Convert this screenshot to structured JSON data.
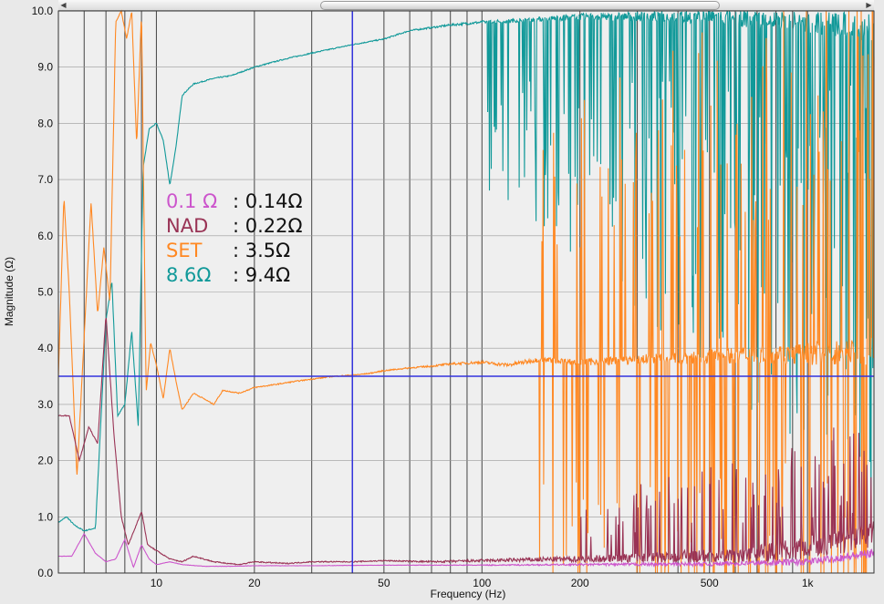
{
  "chart_data": {
    "type": "line",
    "title": "",
    "xlabel": "Frequency (Hz)",
    "ylabel": "Magnitude (Ω)",
    "x_scale": "log",
    "xlim": [
      5,
      1600
    ],
    "ylim": [
      0,
      10
    ],
    "grid": true,
    "x_ticks": [
      10,
      20,
      50,
      100,
      200,
      500,
      1000
    ],
    "x_tick_labels": [
      "10",
      "20",
      "50",
      "100",
      "200",
      "500",
      "1k"
    ],
    "y_ticks": [
      0,
      1,
      2,
      3,
      4,
      5,
      6,
      7,
      8,
      9,
      10
    ],
    "y_tick_labels": [
      "0.0",
      "1.0",
      "2.0",
      "3.0",
      "4.0",
      "5.0",
      "6.0",
      "7.0",
      "8.0",
      "9.0",
      "10.0"
    ],
    "cursor": {
      "x": 40,
      "y": 3.5
    },
    "legend": [
      {
        "name": "0.1 Ω",
        "value": ": 0.14Ω",
        "color": "#cc55cc"
      },
      {
        "name": "NAD",
        "value": ": 0.22Ω",
        "color": "#993355"
      },
      {
        "name": "SET",
        "value": ": 3.5Ω",
        "color": "#ff8822"
      },
      {
        "name": "8.6Ω",
        "value": ": 9.4Ω",
        "color": "#119999"
      }
    ],
    "series": [
      {
        "name": "8.6Ω",
        "color": "#119999",
        "x": [
          5,
          5.3,
          5.6,
          6,
          6.5,
          7,
          7.3,
          7.6,
          8,
          8.4,
          8.8,
          9.1,
          9.5,
          10,
          10.5,
          11,
          11.5,
          12,
          13,
          15,
          17,
          20,
          25,
          30,
          40,
          50,
          60,
          80,
          100,
          150,
          200,
          300,
          500,
          700,
          1000,
          1600
        ],
        "values": [
          0.9,
          1.0,
          0.85,
          0.75,
          0.8,
          4.5,
          5.2,
          2.8,
          3.0,
          4.3,
          2.6,
          7.2,
          7.9,
          8.0,
          7.7,
          6.9,
          7.6,
          8.5,
          8.7,
          8.8,
          8.85,
          9.0,
          9.15,
          9.25,
          9.4,
          9.5,
          9.65,
          9.75,
          9.8,
          9.85,
          9.9,
          9.9,
          9.9,
          9.85,
          9.8,
          9.7
        ]
      },
      {
        "name": "SET",
        "color": "#ff8822",
        "x": [
          5,
          5.2,
          5.4,
          5.7,
          6,
          6.3,
          6.6,
          6.9,
          7.2,
          7.5,
          7.8,
          8.1,
          8.4,
          8.7,
          9,
          9.3,
          9.6,
          10,
          10.5,
          11,
          11.5,
          12,
          13,
          14,
          15,
          16,
          18,
          20,
          23,
          26,
          30,
          35,
          40,
          45,
          50,
          60,
          70,
          80,
          100,
          120,
          150,
          200,
          300,
          500,
          700,
          1000,
          1600
        ],
        "values": [
          3.5,
          6.7,
          5.0,
          1.7,
          4.2,
          6.6,
          4.6,
          5.8,
          4.8,
          9.8,
          10.0,
          9.5,
          10.0,
          7.6,
          10.0,
          3.2,
          4.1,
          3.7,
          3.1,
          4.0,
          3.4,
          2.9,
          3.2,
          3.1,
          3.0,
          3.25,
          3.2,
          3.3,
          3.35,
          3.4,
          3.45,
          3.5,
          3.52,
          3.55,
          3.6,
          3.65,
          3.68,
          3.72,
          3.75,
          3.7,
          3.8,
          3.75,
          3.8,
          3.85,
          3.9,
          3.9,
          3.95
        ]
      },
      {
        "name": "NAD",
        "color": "#993355",
        "x": [
          5,
          5.4,
          5.8,
          6.2,
          6.6,
          7,
          7.4,
          7.8,
          8.2,
          8.6,
          9,
          9.4,
          10,
          11,
          12,
          13,
          15,
          18,
          20,
          25,
          30,
          40,
          50,
          70,
          100,
          150,
          200,
          300,
          500,
          700,
          1000,
          1600
        ],
        "values": [
          2.8,
          2.8,
          2.0,
          2.6,
          2.3,
          4.6,
          2.5,
          1.0,
          0.5,
          0.8,
          1.1,
          0.5,
          0.4,
          0.25,
          0.2,
          0.3,
          0.2,
          0.15,
          0.2,
          0.17,
          0.2,
          0.2,
          0.22,
          0.2,
          0.22,
          0.24,
          0.25,
          0.27,
          0.3,
          0.35,
          0.45,
          0.7
        ]
      },
      {
        "name": "0.1 Ω",
        "color": "#cc55cc",
        "x": [
          5,
          5.5,
          6,
          6.5,
          7,
          7.5,
          8,
          8.5,
          9,
          9.5,
          10,
          11,
          12,
          14,
          17,
          20,
          30,
          50,
          100,
          200,
          500,
          1000,
          1600
        ],
        "values": [
          0.3,
          0.3,
          0.7,
          0.35,
          0.2,
          0.25,
          0.6,
          0.1,
          0.5,
          0.25,
          0.15,
          0.2,
          0.15,
          0.12,
          0.12,
          0.13,
          0.13,
          0.14,
          0.14,
          0.15,
          0.16,
          0.2,
          0.35
        ]
      }
    ]
  }
}
